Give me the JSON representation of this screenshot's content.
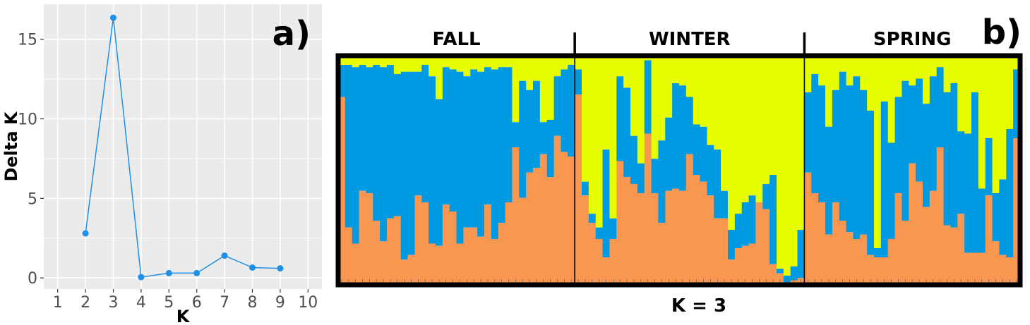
{
  "colors": {
    "cluster1": "#F99650",
    "cluster2": "#009AE2",
    "cluster3": "#E6FE00",
    "line": "#1E90E8",
    "panel_bg": "#EBEBEB",
    "grid": "#FFFFFF"
  },
  "chart_data": [
    {
      "type": "line",
      "panel_label": "a)",
      "xlabel": "K",
      "ylabel": "Delta K",
      "xlim": [
        0.5,
        10.5
      ],
      "ylim": [
        -0.7,
        17.2
      ],
      "xticks": [
        1,
        2,
        3,
        4,
        5,
        6,
        7,
        8,
        9,
        10
      ],
      "yticks": [
        0,
        5,
        10,
        15
      ],
      "grid": true,
      "x": [
        2,
        3,
        4,
        5,
        6,
        7,
        8,
        9
      ],
      "y": [
        2.8,
        16.35,
        0.05,
        0.3,
        0.3,
        1.4,
        0.65,
        0.6
      ]
    },
    {
      "type": "bar",
      "stacked": true,
      "panel_label": "b)",
      "xlabel": "K = 3",
      "groups": [
        {
          "name": "FALL",
          "n": 34
        },
        {
          "name": "WINTER",
          "n": 33
        },
        {
          "name": "SPRING",
          "n": 31
        }
      ],
      "series_order": [
        "cluster1",
        "cluster2",
        "cluster3"
      ],
      "comment_units": "each bar: cumulative top of cluster1 and of cluster1+cluster2, as fraction of 1 (rest is cluster3)",
      "bars": [
        [
          0.82,
          0.96
        ],
        [
          0.25,
          0.96
        ],
        [
          0.18,
          0.95
        ],
        [
          0.41,
          0.96
        ],
        [
          0.4,
          0.95
        ],
        [
          0.28,
          0.96
        ],
        [
          0.19,
          0.95
        ],
        [
          0.29,
          0.96
        ],
        [
          0.3,
          0.92
        ],
        [
          0.11,
          0.93
        ],
        [
          0.13,
          0.93
        ],
        [
          0.39,
          0.93
        ],
        [
          0.36,
          0.96
        ],
        [
          0.18,
          0.91
        ],
        [
          0.17,
          0.81
        ],
        [
          0.35,
          0.95
        ],
        [
          0.32,
          0.94
        ],
        [
          0.18,
          0.93
        ],
        [
          0.25,
          0.91
        ],
        [
          0.25,
          0.94
        ],
        [
          0.21,
          0.93
        ],
        [
          0.35,
          0.95
        ],
        [
          0.2,
          0.94
        ],
        [
          0.27,
          0.95
        ],
        [
          0.36,
          0.95
        ],
        [
          0.6,
          0.71
        ],
        [
          0.38,
          0.89
        ],
        [
          0.49,
          0.85
        ],
        [
          0.51,
          0.89
        ],
        [
          0.57,
          0.71
        ],
        [
          0.47,
          0.72
        ],
        [
          0.65,
          0.91
        ],
        [
          0.58,
          0.94
        ],
        [
          0.56,
          0.96
        ],
        [
          0.83,
          0.94
        ],
        [
          0.39,
          0.45
        ],
        [
          0.27,
          0.31
        ],
        [
          0.2,
          0.25
        ],
        [
          0.12,
          0.59
        ],
        [
          0.2,
          0.29
        ],
        [
          0.54,
          0.91
        ],
        [
          0.47,
          0.86
        ],
        [
          0.44,
          0.65
        ],
        [
          0.4,
          0.53
        ],
        [
          0.66,
          0.98
        ],
        [
          0.4,
          0.55
        ],
        [
          0.27,
          0.63
        ],
        [
          0.41,
          0.73
        ],
        [
          0.42,
          0.88
        ],
        [
          0.41,
          0.87
        ],
        [
          0.57,
          0.82
        ],
        [
          0.48,
          0.7
        ],
        [
          0.45,
          0.69
        ],
        [
          0.39,
          0.61
        ],
        [
          0.29,
          0.59
        ],
        [
          0.29,
          0.41
        ],
        [
          0.11,
          0.24
        ],
        [
          0.16,
          0.31
        ],
        [
          0.17,
          0.36
        ],
        [
          0.18,
          0.39
        ],
        [
          0.36,
          0.35
        ],
        [
          0.33,
          0.44
        ],
        [
          0.09,
          0.48
        ],
        [
          0.05,
          0.07
        ],
        [
          0.0,
          0.04
        ],
        [
          0.02,
          0.08
        ],
        [
          0.03,
          0.24
        ],
        [
          0.49,
          0.84
        ],
        [
          0.4,
          0.92
        ],
        [
          0.36,
          0.87
        ],
        [
          0.22,
          0.69
        ],
        [
          0.36,
          0.85
        ],
        [
          0.28,
          0.93
        ],
        [
          0.23,
          0.87
        ],
        [
          0.2,
          0.91
        ],
        [
          0.22,
          0.85
        ],
        [
          0.13,
          0.76
        ],
        [
          0.12,
          0.16
        ],
        [
          0.12,
          0.8
        ],
        [
          0.2,
          0.62
        ],
        [
          0.4,
          0.82
        ],
        [
          0.28,
          0.89
        ],
        [
          0.53,
          0.87
        ],
        [
          0.45,
          0.9
        ],
        [
          0.34,
          0.79
        ],
        [
          0.41,
          0.91
        ],
        [
          0.6,
          0.95
        ],
        [
          0.26,
          0.84
        ],
        [
          0.25,
          0.88
        ],
        [
          0.31,
          0.67
        ],
        [
          0.14,
          0.66
        ],
        [
          0.14,
          0.84
        ],
        [
          0.14,
          0.42
        ],
        [
          0.39,
          0.64
        ],
        [
          0.19,
          0.4
        ],
        [
          0.13,
          0.46
        ],
        [
          0.12,
          0.68
        ],
        [
          0.64,
          0.94
        ]
      ]
    }
  ]
}
